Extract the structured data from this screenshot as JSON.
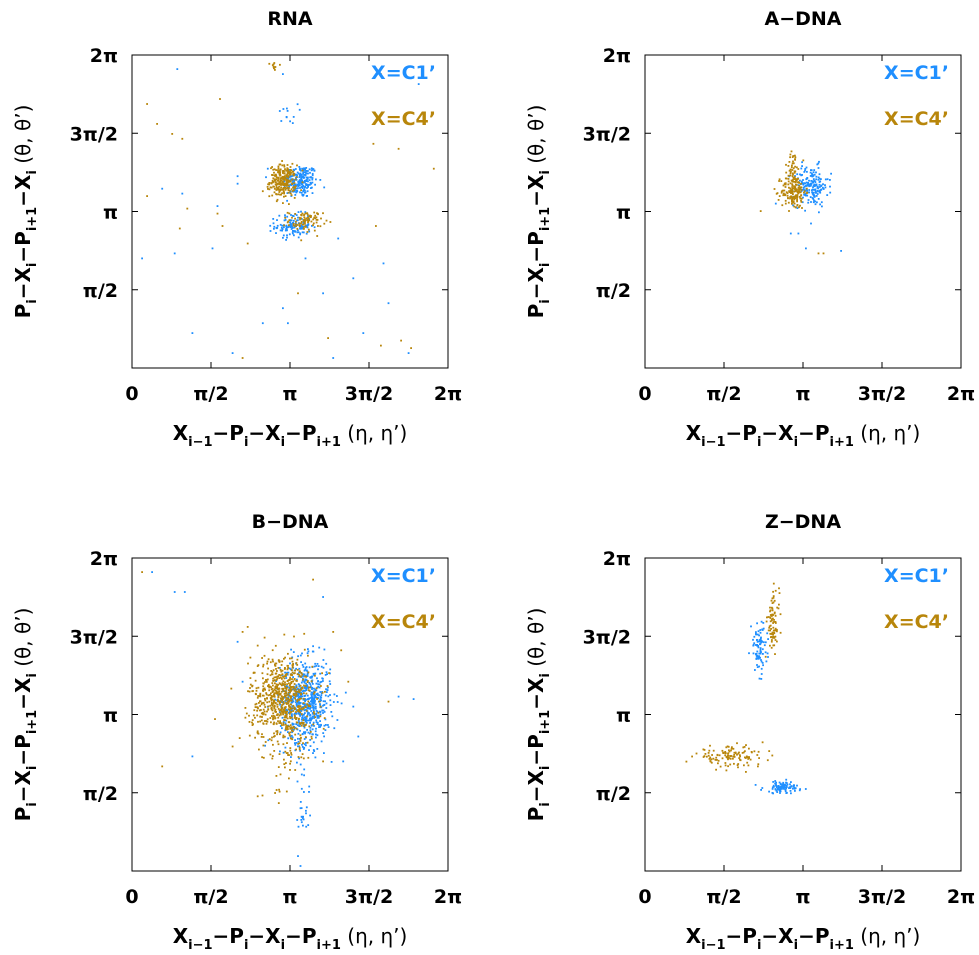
{
  "chart_data": [
    {
      "type": "scatter",
      "title": "RNA",
      "xlabel": {
        "base": "X",
        "sub1": "i−1",
        "p1": "−P",
        "sub2": "i",
        "p2": "−X",
        "sub3": "i",
        "p3": "−P",
        "sub4": "i+1",
        "greek": " (η, η’)"
      },
      "ylabel": {
        "base": "P",
        "sub1": "i",
        "p1": "−X",
        "sub2": "i",
        "p2": "−P",
        "sub3": "i+1",
        "p3": "−X",
        "sub4": "i",
        "greek": " (θ, θ’)"
      },
      "xlim": [
        0,
        6.2832
      ],
      "ylim": [
        0,
        6.2832
      ],
      "xticks": [
        {
          "v": 0,
          "label": "0"
        },
        {
          "v": 1.5708,
          "label": "π/2"
        },
        {
          "v": 3.1416,
          "label": "π"
        },
        {
          "v": 4.7124,
          "label": "3π/2"
        },
        {
          "v": 6.2832,
          "label": "2π"
        }
      ],
      "yticks": [
        {
          "v": 1.5708,
          "label": "π/2"
        },
        {
          "v": 3.1416,
          "label": "π"
        },
        {
          "v": 4.7124,
          "label": "3π/2"
        },
        {
          "v": 6.2832,
          "label": "2π"
        }
      ],
      "series": [
        {
          "name": "X=C1’",
          "color": "#1f8fff",
          "clusters": [
            {
              "cx": 3.35,
              "cy": 3.75,
              "sx": 0.17,
              "sy": 0.17,
              "n": 220
            },
            {
              "cx": 3.2,
              "cy": 2.85,
              "sx": 0.18,
              "sy": 0.12,
              "n": 120
            },
            {
              "cx": 3.1,
              "cy": 5.1,
              "sx": 0.1,
              "sy": 0.1,
              "n": 12
            }
          ],
          "outliers": [
            [
              0.9,
              6.0
            ],
            [
              1.0,
              3.5
            ],
            [
              1.7,
              3.25
            ],
            [
              2.1,
              3.7
            ],
            [
              1.6,
              2.4
            ],
            [
              3.5,
              3.05
            ],
            [
              3.45,
              2.2
            ],
            [
              3.0,
              5.9
            ],
            [
              2.7,
              4.0
            ],
            [
              4.4,
              1.8
            ],
            [
              4.6,
              0.7
            ],
            [
              3.0,
              1.2
            ],
            [
              3.2,
              2.7
            ],
            [
              5.0,
              2.1
            ],
            [
              2.0,
              0.3
            ],
            [
              0.85,
              2.3
            ],
            [
              1.2,
              0.7
            ],
            [
              0.6,
              3.6
            ],
            [
              2.6,
              0.9
            ],
            [
              3.1,
              0.9
            ],
            [
              3.8,
              1.5
            ],
            [
              4.0,
              0.2
            ],
            [
              5.1,
              1.3
            ],
            [
              5.5,
              0.3
            ],
            [
              0.2,
              2.2
            ],
            [
              2.1,
              3.85
            ],
            [
              4.1,
              2.6
            ],
            [
              5.7,
              5.7
            ]
          ]
        },
        {
          "name": "X=C4’",
          "color": "#b8860b",
          "clusters": [
            {
              "cx": 3.0,
              "cy": 3.75,
              "sx": 0.13,
              "sy": 0.16,
              "n": 250
            },
            {
              "cx": 3.45,
              "cy": 2.95,
              "sx": 0.17,
              "sy": 0.1,
              "n": 90
            },
            {
              "cx": 2.85,
              "cy": 6.05,
              "sx": 0.05,
              "sy": 0.05,
              "n": 10
            }
          ],
          "outliers": [
            [
              1.75,
              5.4
            ],
            [
              1.0,
              4.6
            ],
            [
              0.3,
              5.3
            ],
            [
              0.3,
              3.45
            ],
            [
              1.8,
              2.85
            ],
            [
              1.1,
              3.2
            ],
            [
              0.95,
              2.8
            ],
            [
              1.7,
              3.1
            ],
            [
              4.85,
              2.85
            ],
            [
              5.35,
              0.55
            ],
            [
              5.55,
              0.4
            ],
            [
              0.8,
              4.7
            ],
            [
              2.3,
              2.5
            ],
            [
              2.6,
              3.55
            ],
            [
              4.95,
              0.45
            ],
            [
              2.2,
              0.2
            ],
            [
              4.8,
              4.5
            ],
            [
              5.3,
              4.4
            ],
            [
              6.0,
              4.0
            ],
            [
              3.3,
              1.5
            ],
            [
              3.9,
              0.6
            ],
            [
              4.95,
              5.9
            ],
            [
              0.5,
              4.9
            ]
          ]
        }
      ],
      "legend": "top-right"
    },
    {
      "type": "scatter",
      "title": "A−DNA",
      "xlabel": {
        "base": "X",
        "sub1": "i−1",
        "p1": "−P",
        "sub2": "i",
        "p2": "−X",
        "sub3": "i",
        "p3": "−P",
        "sub4": "i+1",
        "greek": " (η, η’)"
      },
      "ylabel": {
        "base": "P",
        "sub1": "i",
        "p1": "−X",
        "sub2": "i",
        "p2": "−P",
        "sub3": "i+1",
        "p3": "−X",
        "sub4": "i",
        "greek": " (θ, θ’)"
      },
      "xlim": [
        0,
        6.2832
      ],
      "ylim": [
        0,
        6.2832
      ],
      "xticks": [
        {
          "v": 0,
          "label": "0"
        },
        {
          "v": 1.5708,
          "label": "π/2"
        },
        {
          "v": 3.1416,
          "label": "π"
        },
        {
          "v": 4.7124,
          "label": "3π/2"
        },
        {
          "v": 6.2832,
          "label": "2π"
        }
      ],
      "yticks": [
        {
          "v": 1.5708,
          "label": "π/2"
        },
        {
          "v": 3.1416,
          "label": "π"
        },
        {
          "v": 4.7124,
          "label": "3π/2"
        },
        {
          "v": 6.2832,
          "label": "2π"
        }
      ],
      "series": [
        {
          "name": "X=C1’",
          "color": "#1f8fff",
          "clusters": [
            {
              "cx": 3.3,
              "cy": 3.65,
              "sx": 0.17,
              "sy": 0.2,
              "n": 180
            }
          ],
          "outliers": [
            [
              3.3,
              2.9
            ],
            [
              2.9,
              2.7
            ],
            [
              3.2,
              2.4
            ],
            [
              3.9,
              2.35
            ],
            [
              2.6,
              3.3
            ],
            [
              3.7,
              3.9
            ],
            [
              3.05,
              2.7
            ]
          ]
        },
        {
          "name": "X=C4’",
          "color": "#b8860b",
          "clusters": [
            {
              "cx": 2.95,
              "cy": 3.55,
              "sx": 0.12,
              "sy": 0.18,
              "n": 170
            },
            {
              "cx": 2.95,
              "cy": 4.1,
              "sx": 0.06,
              "sy": 0.12,
              "n": 30
            }
          ],
          "outliers": [
            [
              2.3,
              3.15
            ],
            [
              3.55,
              2.3
            ],
            [
              3.45,
              2.3
            ],
            [
              2.8,
              3.3
            ]
          ]
        }
      ],
      "legend": "top-right"
    },
    {
      "type": "scatter",
      "title": "B−DNA",
      "xlabel": {
        "base": "X",
        "sub1": "i−1",
        "p1": "−P",
        "sub2": "i",
        "p2": "−X",
        "sub3": "i",
        "p3": "−P",
        "sub4": "i+1",
        "greek": " (η, η’)"
      },
      "ylabel": {
        "base": "P",
        "sub1": "i",
        "p1": "−X",
        "sub2": "i",
        "p2": "−P",
        "sub3": "i+1",
        "p3": "−X",
        "sub4": "i",
        "greek": " (θ, θ’)"
      },
      "xlim": [
        0,
        6.2832
      ],
      "ylim": [
        0,
        6.2832
      ],
      "xticks": [
        {
          "v": 0,
          "label": "0"
        },
        {
          "v": 1.5708,
          "label": "π/2"
        },
        {
          "v": 3.1416,
          "label": "π"
        },
        {
          "v": 4.7124,
          "label": "3π/2"
        },
        {
          "v": 6.2832,
          "label": "2π"
        }
      ],
      "yticks": [
        {
          "v": 1.5708,
          "label": "π/2"
        },
        {
          "v": 3.1416,
          "label": "π"
        },
        {
          "v": 4.7124,
          "label": "3π/2"
        },
        {
          "v": 6.2832,
          "label": "2π"
        }
      ],
      "series": [
        {
          "name": "X=C1’",
          "color": "#1f8fff",
          "clusters": [
            {
              "cx": 3.45,
              "cy": 3.4,
              "sx": 0.25,
              "sy": 0.42,
              "n": 650
            },
            {
              "cx": 3.4,
              "cy": 1.4,
              "sx": 0.08,
              "sy": 0.5,
              "n": 30
            }
          ],
          "outliers": [
            [
              0.4,
              6.0
            ],
            [
              0.85,
              5.6
            ],
            [
              1.05,
              5.6
            ],
            [
              2.1,
              4.6
            ],
            [
              5.6,
              3.45
            ],
            [
              5.3,
              3.5
            ],
            [
              4.4,
              3.3
            ],
            [
              1.2,
              2.3
            ],
            [
              3.3,
              0.3
            ],
            [
              3.35,
              0.1
            ],
            [
              4.5,
              2.7
            ],
            [
              2.2,
              3.8
            ],
            [
              3.8,
              5.5
            ],
            [
              4.2,
              2.2
            ]
          ]
        },
        {
          "name": "X=C4’",
          "color": "#b8860b",
          "clusters": [
            {
              "cx": 3.0,
              "cy": 3.45,
              "sx": 0.32,
              "sy": 0.45,
              "n": 700
            },
            {
              "cx": 3.05,
              "cy": 2.2,
              "sx": 0.15,
              "sy": 0.4,
              "n": 40
            }
          ],
          "outliers": [
            [
              0.2,
              6.0
            ],
            [
              1.65,
              3.05
            ],
            [
              0.6,
              2.1
            ],
            [
              2.2,
              4.8
            ],
            [
              2.3,
              4.9
            ],
            [
              3.6,
              5.85
            ],
            [
              5.1,
              3.4
            ],
            [
              4.3,
              3.8
            ],
            [
              2.0,
              2.5
            ],
            [
              4.0,
              4.8
            ],
            [
              2.5,
              1.5
            ],
            [
              3.8,
              2.2
            ]
          ]
        }
      ],
      "legend": "top-right"
    },
    {
      "type": "scatter",
      "title": "Z−DNA",
      "xlabel": {
        "base": "X",
        "sub1": "i−1",
        "p1": "−P",
        "sub2": "i",
        "p2": "−X",
        "sub3": "i",
        "p3": "−P",
        "sub4": "i+1",
        "greek": " (η, η’)"
      },
      "ylabel": {
        "base": "P",
        "sub1": "i",
        "p1": "−X",
        "sub2": "i",
        "p2": "−P",
        "sub3": "i+1",
        "p3": "−X",
        "sub4": "i",
        "greek": " (θ, θ’)"
      },
      "xlim": [
        0,
        6.2832
      ],
      "ylim": [
        0,
        6.2832
      ],
      "xticks": [
        {
          "v": 0,
          "label": "0"
        },
        {
          "v": 1.5708,
          "label": "π/2"
        },
        {
          "v": 3.1416,
          "label": "π"
        },
        {
          "v": 4.7124,
          "label": "3π/2"
        },
        {
          "v": 6.2832,
          "label": "2π"
        }
      ],
      "yticks": [
        {
          "v": 1.5708,
          "label": "π/2"
        },
        {
          "v": 3.1416,
          "label": "π"
        },
        {
          "v": 4.7124,
          "label": "3π/2"
        },
        {
          "v": 6.2832,
          "label": "2π"
        }
      ],
      "series": [
        {
          "name": "X=C1’",
          "color": "#1f8fff",
          "clusters": [
            {
              "cx": 2.27,
              "cy": 4.47,
              "sx": 0.08,
              "sy": 0.25,
              "n": 90
            },
            {
              "cx": 2.75,
              "cy": 1.68,
              "sx": 0.2,
              "sy": 0.06,
              "n": 100
            }
          ],
          "outliers": [
            [
              2.55,
              4.7
            ]
          ]
        },
        {
          "name": "X=C4’",
          "color": "#b8860b",
          "clusters": [
            {
              "cx": 2.55,
              "cy": 5.0,
              "sx": 0.06,
              "sy": 0.3,
              "n": 80
            },
            {
              "cx": 1.7,
              "cy": 2.3,
              "sx": 0.35,
              "sy": 0.1,
              "n": 120
            }
          ],
          "outliers": [
            [
              1.2,
              2.35
            ],
            [
              2.4,
              4.3
            ]
          ]
        }
      ],
      "legend": "top-right"
    }
  ]
}
